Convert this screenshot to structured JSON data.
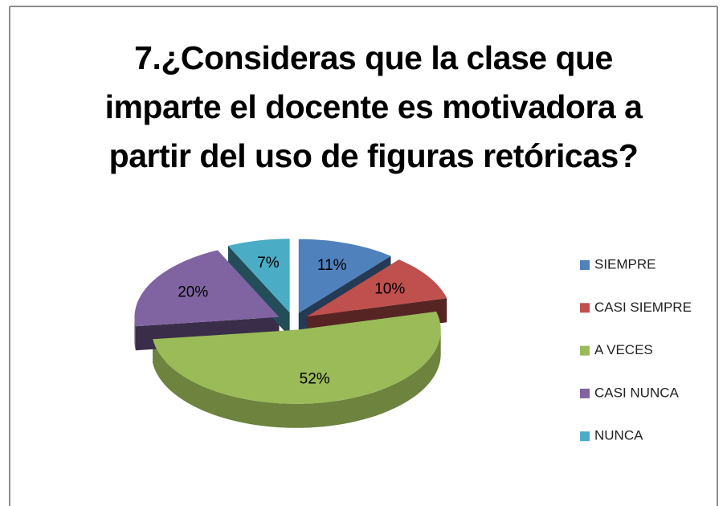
{
  "chart_data": {
    "type": "pie3d",
    "title": "7.¿Consideras que la clase que imparte el docente es motivadora a partir del uso de figuras retóricas?",
    "categories": [
      "SIEMPRE",
      "CASI SIEMPRE",
      "A VECES",
      "CASI NUNCA",
      "NUNCA"
    ],
    "values": [
      11,
      10,
      52,
      20,
      7
    ],
    "value_labels": [
      "11%",
      "10%",
      "52%",
      "20%",
      "7%"
    ],
    "colors": [
      "#4f81bd",
      "#c0504d",
      "#9bbb59",
      "#8064a2",
      "#4bacc6"
    ],
    "legend": "right"
  }
}
